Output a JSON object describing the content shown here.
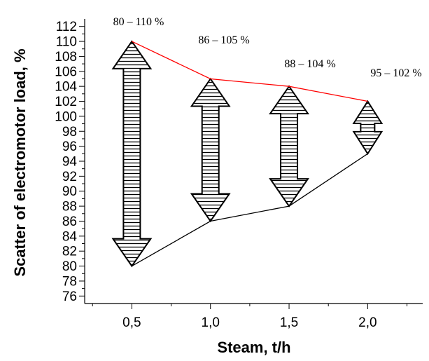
{
  "chart_data": {
    "type": "line",
    "xlabel": "Steam, t/h",
    "ylabel": "Scatter of electromotor load, %",
    "x_tick_labels": [
      "0,5",
      "1,0",
      "1,5",
      "2,0"
    ],
    "x": [
      0.5,
      1.0,
      1.5,
      2.0
    ],
    "xlim": [
      0.2,
      2.35
    ],
    "ylim": [
      75,
      113
    ],
    "y_ticks": [
      76,
      78,
      80,
      82,
      84,
      86,
      88,
      90,
      92,
      94,
      96,
      98,
      100,
      102,
      104,
      106,
      108,
      110,
      112
    ],
    "series": [
      {
        "values": [
          110,
          105,
          104,
          102
        ],
        "color": "#ff0000"
      },
      {
        "values": [
          80,
          86,
          88,
          95
        ],
        "color": "#000000"
      }
    ],
    "ranges": [
      {
        "x": 0.5,
        "low": 80,
        "high": 110,
        "label": "80 – 110 %"
      },
      {
        "x": 1.0,
        "low": 86,
        "high": 105,
        "label": "86 – 105 %"
      },
      {
        "x": 1.5,
        "low": 88,
        "high": 104,
        "label": "88 – 104 %"
      },
      {
        "x": 2.0,
        "low": 95,
        "high": 102,
        "label": "95 – 102 %"
      }
    ],
    "grid": false,
    "legend": "none"
  }
}
